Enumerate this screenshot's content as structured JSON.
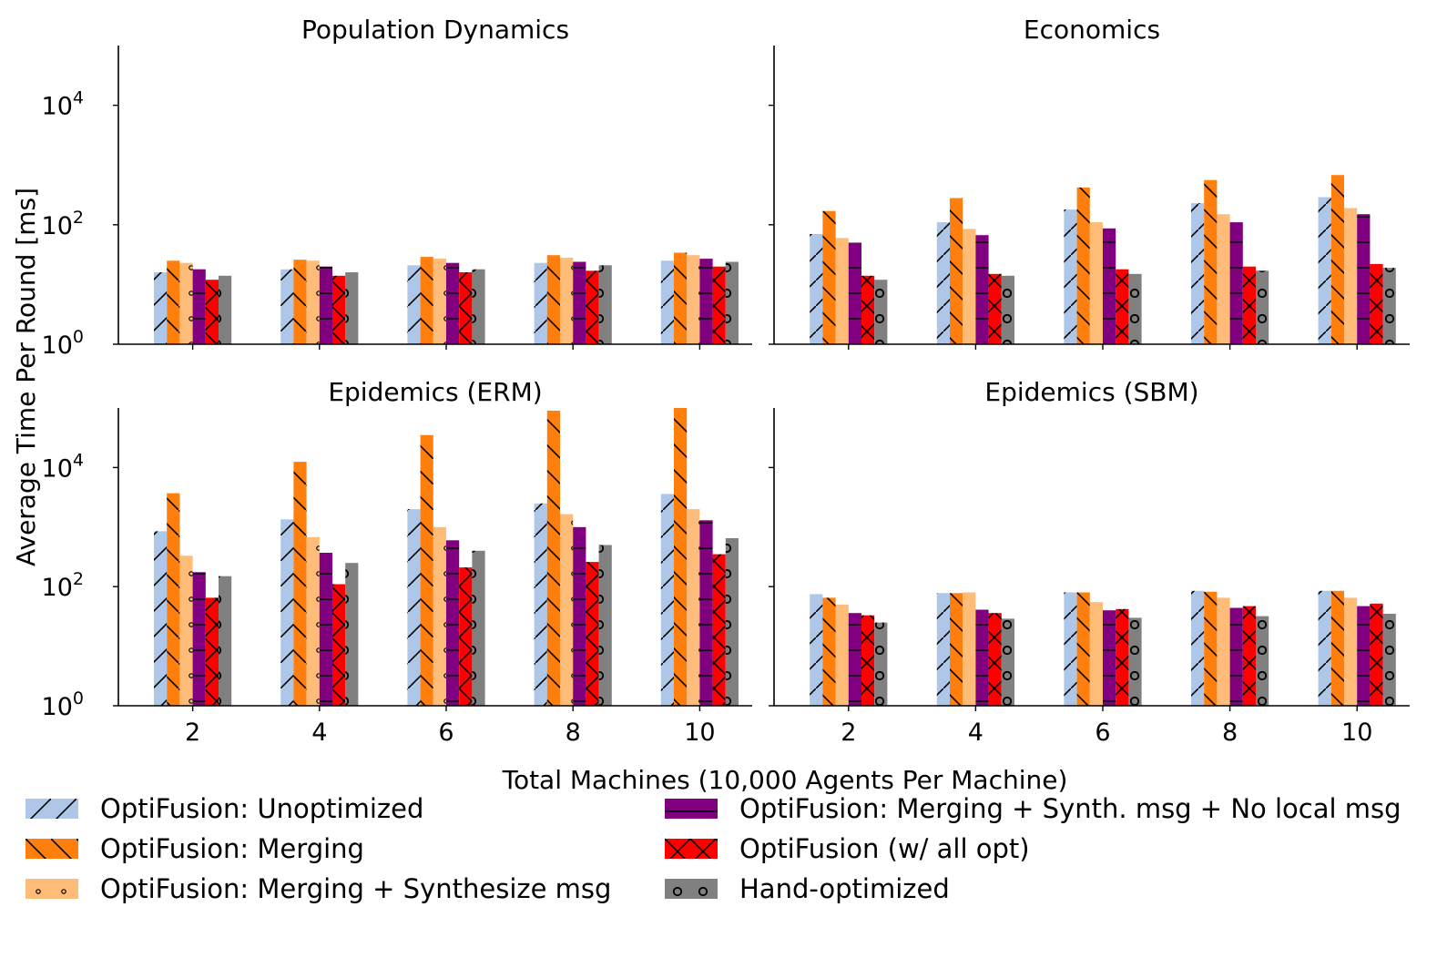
{
  "chart_data": {
    "type": "bar",
    "scale": "log",
    "ylabel": "Average Time Per Round [ms]",
    "xlabel": "Total Machines (10,000 Agents Per Machine)",
    "categories": [
      "2",
      "4",
      "6",
      "8",
      "10"
    ],
    "ylim": [
      1,
      100000
    ],
    "yticks": [
      {
        "value": 1,
        "base": "10",
        "exp": "0"
      },
      {
        "value": 100,
        "base": "10",
        "exp": "2"
      },
      {
        "value": 10000,
        "base": "10",
        "exp": "4"
      }
    ],
    "series_styles": [
      {
        "name": "OptiFusion: Unoptimized",
        "color": "#aec7e8",
        "hatch": "/"
      },
      {
        "name": "OptiFusion: Merging",
        "color": "#ff7f0e",
        "hatch": "\\"
      },
      {
        "name": "OptiFusion: Merging + Synthesize msg",
        "color": "#ffbb78",
        "hatch": "."
      },
      {
        "name": "OptiFusion: Merging + Synth. msg + No local msg",
        "color": "#800080",
        "hatch": "-"
      },
      {
        "name": "OptiFusion (w/ all opt)",
        "color": "#ff0000",
        "hatch": "x"
      },
      {
        "name": "Hand-optimized",
        "color": "#808080",
        "hatch": "o"
      }
    ],
    "panels": [
      {
        "title": "Population Dynamics",
        "series": [
          {
            "name": "OptiFusion: Unoptimized",
            "values": [
              16,
              18,
              21,
              23,
              25
            ]
          },
          {
            "name": "OptiFusion: Merging",
            "values": [
              25,
              26,
              29,
              31,
              34
            ]
          },
          {
            "name": "OptiFusion: Merging + Synthesize msg",
            "values": [
              23,
              25,
              27,
              28,
              31
            ]
          },
          {
            "name": "OptiFusion: Merging + Synth. msg + No local msg",
            "values": [
              18,
              20,
              23,
              24,
              27
            ]
          },
          {
            "name": "OptiFusion (w/ all opt)",
            "values": [
              12,
              14,
              16,
              17,
              20
            ]
          },
          {
            "name": "Hand-optimized",
            "values": [
              14,
              16,
              18,
              21,
              24
            ]
          }
        ]
      },
      {
        "title": "Economics",
        "series": [
          {
            "name": "OptiFusion: Unoptimized",
            "values": [
              70,
              110,
              180,
              230,
              290
            ]
          },
          {
            "name": "OptiFusion: Merging",
            "values": [
              170,
              280,
              420,
              560,
              680
            ]
          },
          {
            "name": "OptiFusion: Merging + Synthesize msg",
            "values": [
              60,
              85,
              110,
              150,
              190
            ]
          },
          {
            "name": "OptiFusion: Merging + Synth. msg + No local msg",
            "values": [
              50,
              67,
              87,
              110,
              150
            ]
          },
          {
            "name": "OptiFusion (w/ all opt)",
            "values": [
              14,
              15,
              18,
              20,
              22
            ]
          },
          {
            "name": "Hand-optimized",
            "values": [
              12,
              14,
              15,
              17,
              19
            ]
          }
        ]
      },
      {
        "title": "Epidemics (ERM)",
        "series": [
          {
            "name": "OptiFusion: Unoptimized",
            "values": [
              850,
              1350,
              2000,
              2500,
              3600
            ]
          },
          {
            "name": "OptiFusion: Merging",
            "values": [
              3700,
              12500,
              35000,
              90000,
              100000
            ]
          },
          {
            "name": "OptiFusion: Merging + Synthesize msg",
            "values": [
              330,
              680,
              1000,
              1650,
              2000
            ]
          },
          {
            "name": "OptiFusion: Merging + Synth. msg + No local msg",
            "values": [
              175,
              370,
              600,
              1000,
              1300
            ]
          },
          {
            "name": "OptiFusion (w/ all opt)",
            "values": [
              65,
              110,
              210,
              260,
              350
            ]
          },
          {
            "name": "Hand-optimized",
            "values": [
              150,
              250,
              400,
              500,
              650
            ]
          }
        ]
      },
      {
        "title": "Epidemics (SBM)",
        "series": [
          {
            "name": "OptiFusion: Unoptimized",
            "values": [
              75,
              78,
              80,
              85,
              85
            ]
          },
          {
            "name": "OptiFusion: Merging",
            "values": [
              65,
              78,
              80,
              82,
              85
            ]
          },
          {
            "name": "OptiFusion: Merging + Synthesize msg",
            "values": [
              50,
              80,
              55,
              65,
              65
            ]
          },
          {
            "name": "OptiFusion: Merging + Synth. msg + No local msg",
            "values": [
              36,
              41,
              40,
              44,
              47
            ]
          },
          {
            "name": "OptiFusion (w/ all opt)",
            "values": [
              33,
              36,
              42,
              47,
              52
            ]
          },
          {
            "name": "Hand-optimized",
            "values": [
              25,
              29,
              30,
              32,
              35
            ]
          }
        ]
      }
    ]
  },
  "legend": {
    "items": [
      "OptiFusion: Unoptimized",
      "OptiFusion: Merging",
      "OptiFusion: Merging + Synthesize msg",
      "OptiFusion: Merging + Synth. msg + No local msg",
      "OptiFusion (w/ all opt)",
      "Hand-optimized"
    ]
  }
}
